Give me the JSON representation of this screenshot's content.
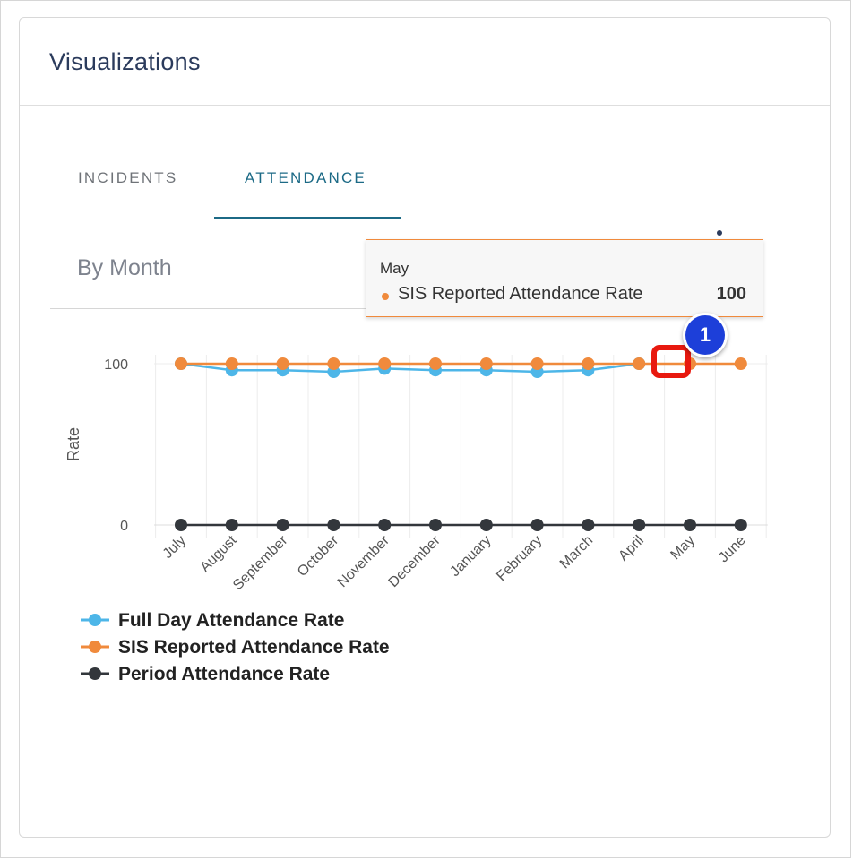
{
  "card": {
    "title": "Visualizations"
  },
  "tabs": [
    {
      "label": "INCIDENTS",
      "active": false
    },
    {
      "label": "ATTENDANCE",
      "active": true
    }
  ],
  "subtitle": "By Month",
  "menu_icon": "vertical-ellipsis-icon",
  "tooltip": {
    "month": "May",
    "series": "SIS Reported Attendance Rate",
    "value": "100"
  },
  "annotation": {
    "step": "1",
    "badge_color": "#1d3fd9",
    "highlight_color": "#e8190f"
  },
  "chart_data": {
    "type": "line",
    "categories": [
      "July",
      "August",
      "September",
      "October",
      "November",
      "December",
      "January",
      "February",
      "March",
      "April",
      "May",
      "June"
    ],
    "series": [
      {
        "name": "Full Day Attendance Rate",
        "color": "#4db6e8",
        "values": [
          100,
          96,
          96,
          95,
          97,
          96,
          96,
          95,
          96,
          100,
          null,
          null
        ]
      },
      {
        "name": "SIS Reported Attendance Rate",
        "color": "#f08a3c",
        "values": [
          100,
          100,
          100,
          100,
          100,
          100,
          100,
          100,
          100,
          100,
          100,
          100
        ]
      },
      {
        "name": "Period Attendance Rate",
        "color": "#33373c",
        "values": [
          0,
          0,
          0,
          0,
          0,
          0,
          0,
          0,
          0,
          0,
          0,
          0
        ]
      }
    ],
    "ylabel": "Rate",
    "yticks": [
      "0",
      "100"
    ],
    "ylim": [
      0,
      100
    ],
    "grid": true,
    "legend": "bottom-left"
  }
}
